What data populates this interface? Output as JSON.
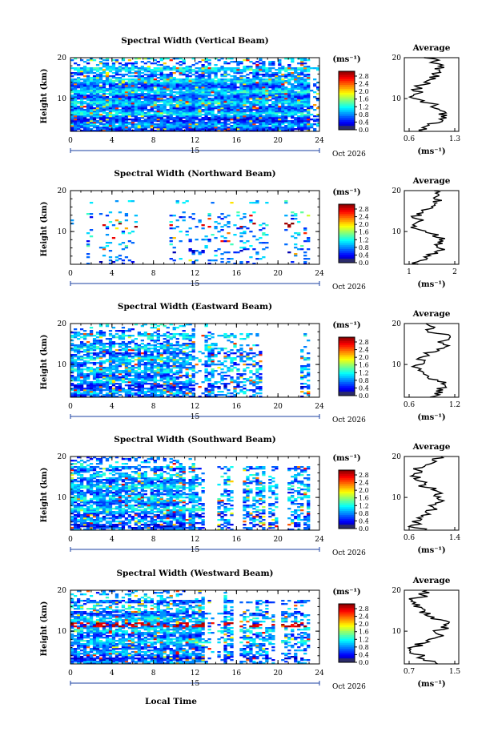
{
  "figure": {
    "bottom_xlabel": "Local Time",
    "date_label": "Oct 2026",
    "day_label": "15",
    "colorbar_unit": "(ms⁻¹)",
    "avg_unit": "(ms⁻¹)",
    "y_unit_label": "Height (km)"
  },
  "chart_data": [
    {
      "type": "heatmap",
      "title": "Spectral Width (Vertical Beam)",
      "profile_title": "Average",
      "xlabel": "",
      "ylabel": "Height (km)",
      "xlim": [
        0,
        24
      ],
      "ylim": [
        2,
        20
      ],
      "xticks": [
        0,
        4,
        8,
        12,
        16,
        20,
        24
      ],
      "yticks": [
        10,
        20
      ],
      "colorbar": {
        "label": "(ms⁻¹)",
        "min": 0.0,
        "max": 3.0,
        "ticks": [
          "2.8",
          "2.4",
          "2.0",
          "1.6",
          "1.2",
          "0.8",
          "0.4",
          "0.0"
        ]
      },
      "profile": {
        "xlim": [
          0.6,
          1.3
        ],
        "xticks": [
          "0.6",
          "1.3"
        ],
        "ylim": [
          2,
          20
        ],
        "yticks": [
          10,
          20
        ]
      },
      "seed": 11,
      "dense_until": 24,
      "coverage": 0.72,
      "hot_rows": []
    },
    {
      "type": "heatmap",
      "title": "Spectral Width (Northward Beam)",
      "profile_title": "Average",
      "xlabel": "",
      "ylabel": "Height (km)",
      "xlim": [
        0,
        24
      ],
      "ylim": [
        2,
        20
      ],
      "xticks": [
        0,
        4,
        8,
        12,
        16,
        20,
        24
      ],
      "yticks": [
        10,
        20
      ],
      "colorbar": {
        "label": "(ms⁻¹)",
        "min": 0.0,
        "max": 3.0,
        "ticks": [
          "2.8",
          "2.4",
          "2.0",
          "1.6",
          "1.2",
          "0.8",
          "0.4",
          "0.0"
        ]
      },
      "profile": {
        "xlim": [
          0.5,
          2.5
        ],
        "xticks": [
          "1",
          "2"
        ],
        "ylim": [
          2,
          20
        ],
        "yticks": [
          10,
          20
        ]
      },
      "seed": 23,
      "dense_until": 0,
      "coverage": 0.28,
      "hot_rows": [
        11,
        12
      ]
    },
    {
      "type": "heatmap",
      "title": "Spectral Width (Eastward Beam)",
      "profile_title": "Average",
      "xlabel": "",
      "ylabel": "Height (km)",
      "xlim": [
        0,
        24
      ],
      "ylim": [
        2,
        20
      ],
      "xticks": [
        0,
        4,
        8,
        12,
        16,
        20,
        24
      ],
      "yticks": [
        10,
        20
      ],
      "colorbar": {
        "label": "(ms⁻¹)",
        "min": 0.0,
        "max": 3.0,
        "ticks": [
          "2.8",
          "2.4",
          "2.0",
          "1.6",
          "1.2",
          "0.8",
          "0.4",
          "0.0"
        ]
      },
      "profile": {
        "xlim": [
          0.5,
          1.3
        ],
        "xticks": [
          "0.6",
          "1.2"
        ],
        "ylim": [
          2,
          20
        ],
        "yticks": [
          10,
          20
        ]
      },
      "seed": 37,
      "dense_until": 14,
      "coverage": 0.55,
      "hot_rows": []
    },
    {
      "type": "heatmap",
      "title": "Spectral Width (Southward Beam)",
      "profile_title": "Average",
      "xlabel": "",
      "ylabel": "Height (km)",
      "xlim": [
        0,
        24
      ],
      "ylim": [
        2,
        20
      ],
      "xticks": [
        0,
        4,
        8,
        12,
        16,
        20,
        24
      ],
      "yticks": [
        10,
        20
      ],
      "colorbar": {
        "label": "(ms⁻¹)",
        "min": 0.0,
        "max": 3.0,
        "ticks": [
          "2.8",
          "2.4",
          "2.0",
          "1.6",
          "1.2",
          "0.8",
          "0.4",
          "0.0"
        ]
      },
      "profile": {
        "xlim": [
          0.6,
          1.4
        ],
        "xticks": [
          "0.6",
          "1.4"
        ],
        "ylim": [
          2,
          20
        ],
        "yticks": [
          10,
          20
        ]
      },
      "seed": 53,
      "dense_until": 12,
      "coverage": 0.6,
      "hot_rows": []
    },
    {
      "type": "heatmap",
      "title": "Spectral Width (Westward Beam)",
      "profile_title": "Average",
      "xlabel": "Local Time",
      "ylabel": "Height (km)",
      "xlim": [
        0,
        24
      ],
      "ylim": [
        2,
        20
      ],
      "xticks": [
        0,
        4,
        8,
        12,
        16,
        20,
        24
      ],
      "yticks": [
        10,
        20
      ],
      "colorbar": {
        "label": "(ms⁻¹)",
        "min": 0.0,
        "max": 3.0,
        "ticks": [
          "2.8",
          "2.4",
          "2.0",
          "1.6",
          "1.2",
          "0.8",
          "0.4",
          "0.0"
        ]
      },
      "profile": {
        "xlim": [
          0.7,
          1.5
        ],
        "xticks": [
          "0.7",
          "1.5"
        ],
        "ylim": [
          2,
          20
        ],
        "yticks": [
          10,
          20
        ]
      },
      "seed": 71,
      "dense_until": 15,
      "coverage": 0.6,
      "hot_rows": [
        11,
        12
      ]
    }
  ]
}
